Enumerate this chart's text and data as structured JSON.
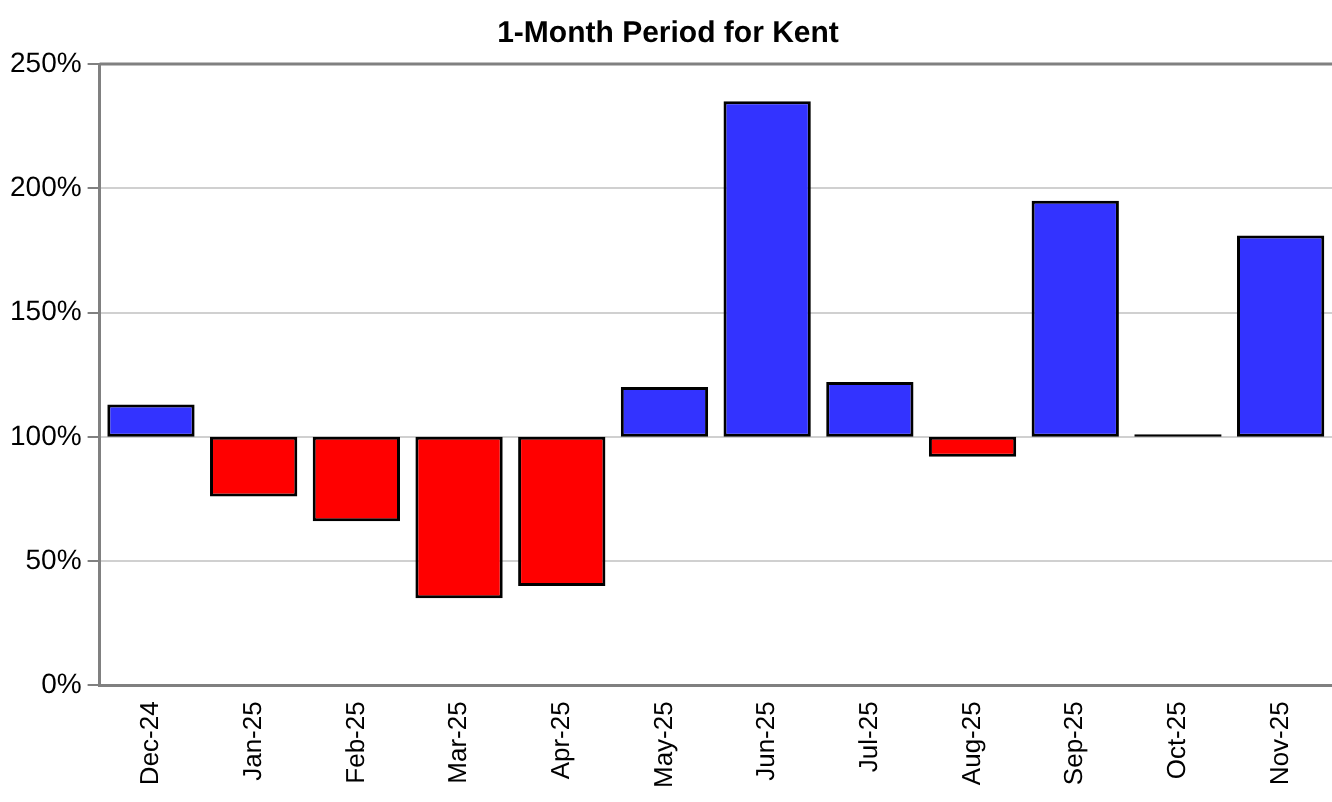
{
  "chart_data": {
    "type": "bar",
    "title": "1-Month Period for Kent",
    "categories": [
      "Dec-24",
      "Jan-25",
      "Feb-25",
      "Mar-25",
      "Apr-25",
      "May-25",
      "Jun-25",
      "Jul-25",
      "Aug-25",
      "Sep-25",
      "Oct-25",
      "Nov-25"
    ],
    "base": [
      100,
      100,
      100,
      100,
      100,
      100,
      100,
      100,
      100,
      100,
      100,
      100
    ],
    "values": [
      13,
      -24,
      -34,
      -65,
      -60,
      20,
      135,
      22,
      -8,
      95,
      1,
      81
    ],
    "colors": [
      "#3333ff",
      "#ff0000",
      "#ff0000",
      "#ff0000",
      "#ff0000",
      "#3333ff",
      "#3333ff",
      "#3333ff",
      "#ff0000",
      "#3333ff",
      "#000000",
      "#3333ff"
    ],
    "ylim": [
      0,
      250
    ],
    "yticks": [
      {
        "value": 0,
        "label": "0%"
      },
      {
        "value": 50,
        "label": "50%"
      },
      {
        "value": 100,
        "label": "100%"
      },
      {
        "value": 150,
        "label": "150%"
      },
      {
        "value": 200,
        "label": "200%"
      },
      {
        "value": 250,
        "label": "250%"
      }
    ],
    "grid": "y",
    "legend": false
  }
}
